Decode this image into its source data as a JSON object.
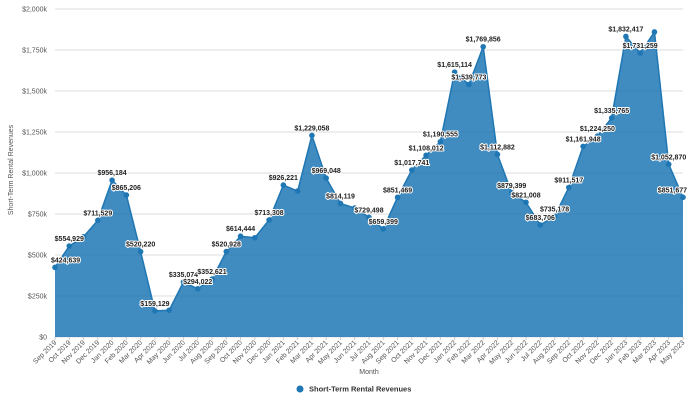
{
  "chart_data": {
    "type": "area",
    "title": "",
    "xlabel": "Month",
    "ylabel": "Short-Term Rental Revenues",
    "ylim": [
      0,
      2000000
    ],
    "yticks": [
      0,
      250000,
      500000,
      750000,
      1000000,
      1250000,
      1500000,
      1750000,
      2000000
    ],
    "ytick_labels": [
      "$0",
      "$250k",
      "$500k",
      "$750k",
      "$1,000k",
      "$1,250k",
      "$1,500k",
      "$1,750k",
      "$2,000k"
    ],
    "grid": true,
    "legend": "bottom-center",
    "color": "#1f77b4",
    "categories": [
      "Sep 2019",
      "Oct 2019",
      "Nov 2019",
      "Dec 2019",
      "Jan 2020",
      "Feb 2020",
      "Mar 2020",
      "Apr 2020",
      "May 2020",
      "Jun 2020",
      "Jul 2020",
      "Aug 2020",
      "Sep 2020",
      "Oct 2020",
      "Nov 2020",
      "Dec 2020",
      "Jan 2021",
      "Feb 2021",
      "Mar 2021",
      "Apr 2021",
      "May 2021",
      "Jun 2021",
      "Jul 2021",
      "Aug 2021",
      "Sep 2021",
      "Oct 2021",
      "Nov 2021",
      "Dec 2021",
      "Jan 2022",
      "Feb 2022",
      "Mar 2022",
      "Apr 2022",
      "May 2022",
      "Jun 2022",
      "Jul 2022",
      "Aug 2022",
      "Sep 2022",
      "Oct 2022",
      "Nov 2022",
      "Dec 2022",
      "Jan 2023",
      "Feb 2023",
      "Mar 2023",
      "Apr 2023",
      "May 2023"
    ],
    "series": [
      {
        "name": "Short-Term Rental Revenues",
        "values": [
          424639,
          554929,
          611000,
          711529,
          956184,
          865206,
          520220,
          159129,
          163000,
          335074,
          294022,
          352621,
          520928,
          614444,
          605000,
          713308,
          926221,
          890000,
          1229058,
          969048,
          814119,
          786000,
          729498,
          659399,
          851469,
          1017741,
          1108012,
          1190555,
          1615114,
          1539773,
          1769856,
          1112882,
          879399,
          821008,
          683706,
          735178,
          911517,
          1161948,
          1224250,
          1335765,
          1832417,
          1731259,
          1860000,
          1052870,
          851677
        ]
      }
    ],
    "data_labels": [
      "$424,639",
      "$554,929",
      "",
      "$711,529",
      "$956,184",
      "$865,206",
      "$520,220",
      "$159,129",
      "",
      "$335,074",
      "$294,022",
      "$352,621",
      "$520,928",
      "$614,444",
      "",
      "$713,308",
      "$926,221",
      "",
      "$1,229,058",
      "$969,048",
      "$814,119",
      "",
      "$729,498",
      "$659,399",
      "$851,469",
      "$1,017,741",
      "$1,108,012",
      "$1,190,555",
      "$1,615,114",
      "$1,539,773",
      "$1,769,856",
      "$1,112,882",
      "$879,399",
      "$821,008",
      "$683,706",
      "$735,178",
      "$911,517",
      "$1,161,948",
      "$1,224,250",
      "$1,335,765",
      "$1,832,417",
      "$1,731,259",
      "",
      "$1,052,870",
      "$851,677"
    ]
  }
}
